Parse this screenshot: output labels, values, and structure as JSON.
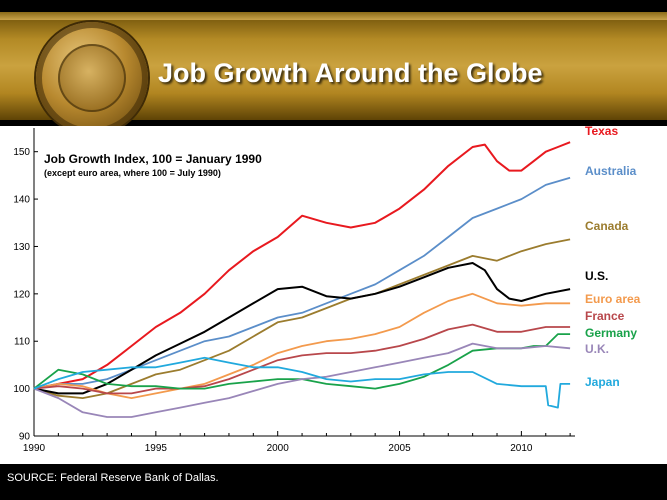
{
  "header": {
    "title": "Job Growth Around the Globe",
    "seal_icon": "federal-reserve-seal-icon"
  },
  "footer": {
    "source": "SOURCE: Federal Reserve Bank of Dallas."
  },
  "chart_data": {
    "type": "line",
    "title": "",
    "xlabel": "",
    "ylabel": "",
    "annotation": [
      "Job Growth Index, 100 = January 1990",
      "(except euro area,  where 100 = July 1990)"
    ],
    "xlim": [
      1990,
      2012.2
    ],
    "ylim": [
      90,
      155
    ],
    "xticks": [
      1990,
      1995,
      2000,
      2005,
      2010
    ],
    "yticks": [
      90,
      100,
      110,
      120,
      130,
      140,
      150
    ],
    "grid": false,
    "legend": "direct labels at right",
    "series": [
      {
        "name": "Texas",
        "color": "#e8191f",
        "x": [
          1990,
          1991,
          1992,
          1993,
          1994,
          1995,
          1996,
          1997,
          1998,
          1999,
          2000,
          2001,
          2002,
          2003,
          2004,
          2005,
          2006,
          2007,
          2008,
          2008.5,
          2009,
          2009.5,
          2010,
          2010.5,
          2011,
          2011.5,
          2012
        ],
        "y": [
          100,
          101,
          102,
          105,
          109,
          113,
          116,
          120,
          125,
          129,
          132,
          136.5,
          135,
          134,
          135,
          138,
          142,
          147,
          151,
          151.5,
          148,
          146,
          146,
          148,
          150,
          151,
          152
        ]
      },
      {
        "name": "Australia",
        "color": "#5b8ec9",
        "x": [
          1990,
          1991,
          1992,
          1993,
          1994,
          1995,
          1996,
          1997,
          1998,
          1999,
          2000,
          2001,
          2002,
          2003,
          2004,
          2005,
          2006,
          2007,
          2008,
          2009,
          2010,
          2011,
          2012
        ],
        "y": [
          100,
          101,
          101,
          102,
          104,
          106,
          108,
          110,
          111,
          113,
          115,
          116,
          118,
          120,
          122,
          125,
          128,
          132,
          136,
          138,
          140,
          143,
          144.5
        ]
      },
      {
        "name": "Canada",
        "color": "#9b7c2e",
        "x": [
          1990,
          1991,
          1992,
          1993,
          1994,
          1995,
          1996,
          1997,
          1998,
          1999,
          2000,
          2001,
          2002,
          2003,
          2004,
          2005,
          2006,
          2007,
          2008,
          2009,
          2010,
          2011,
          2012
        ],
        "y": [
          100,
          98.5,
          98,
          99,
          101,
          103,
          104,
          106,
          108,
          111,
          114,
          115,
          117,
          119,
          120,
          122,
          124,
          126,
          128,
          127,
          129,
          130.5,
          131.5
        ]
      },
      {
        "name": "U.S.",
        "color": "#000000",
        "x": [
          1990,
          1991,
          1992,
          1993,
          1994,
          1995,
          1996,
          1997,
          1998,
          1999,
          2000,
          2001,
          2002,
          2003,
          2004,
          2005,
          2006,
          2007,
          2008,
          2008.5,
          2009,
          2009.5,
          2010,
          2011,
          2012
        ],
        "y": [
          100,
          99,
          99,
          101,
          104,
          107,
          109.5,
          112,
          115,
          118,
          121,
          121.5,
          119.5,
          119,
          120,
          121.5,
          123.5,
          125.5,
          126.5,
          125,
          121,
          119,
          118.5,
          120,
          121
        ]
      },
      {
        "name": "Euro area",
        "color": "#f39a4d",
        "x": [
          1990,
          1991,
          1992,
          1993,
          1994,
          1995,
          1996,
          1997,
          1998,
          1999,
          2000,
          2001,
          2002,
          2003,
          2004,
          2005,
          2006,
          2007,
          2008,
          2009,
          2010,
          2011,
          2012
        ],
        "y": [
          100,
          101,
          100.5,
          99,
          98,
          99,
          100,
          101,
          103,
          105,
          107.5,
          109,
          110,
          110.5,
          111.5,
          113,
          116,
          118.5,
          120,
          118,
          117.5,
          118,
          118
        ]
      },
      {
        "name": "France",
        "color": "#b8474b",
        "x": [
          1990,
          1991,
          1992,
          1993,
          1994,
          1995,
          1996,
          1997,
          1998,
          1999,
          2000,
          2001,
          2002,
          2003,
          2004,
          2005,
          2006,
          2007,
          2008,
          2009,
          2010,
          2011,
          2012
        ],
        "y": [
          100,
          100.5,
          100,
          99,
          99,
          100,
          100,
          100.5,
          102,
          104,
          106,
          107,
          107.5,
          107.5,
          108,
          109,
          110.5,
          112.5,
          113.5,
          112,
          112,
          113,
          113
        ]
      },
      {
        "name": "Germany",
        "color": "#19a24a",
        "x": [
          1990,
          1991,
          1992,
          1993,
          1994,
          1995,
          1996,
          1997,
          1998,
          1999,
          2000,
          2001,
          2002,
          2003,
          2004,
          2005,
          2006,
          2007,
          2008,
          2009,
          2010,
          2010.5,
          2011,
          2011.5,
          2012
        ],
        "y": [
          100,
          104,
          103,
          101,
          100.5,
          100.5,
          100,
          100,
          101,
          101.5,
          102,
          102,
          101,
          100.5,
          100,
          101,
          102.5,
          105,
          108,
          108.5,
          108.5,
          109,
          109,
          111.5,
          111.5
        ]
      },
      {
        "name": "U.K.",
        "color": "#9986b8",
        "x": [
          1990,
          1991,
          1992,
          1993,
          1994,
          1995,
          1996,
          1997,
          1998,
          1999,
          2000,
          2001,
          2002,
          2003,
          2004,
          2005,
          2006,
          2007,
          2008,
          2009,
          2010,
          2011,
          2012
        ],
        "y": [
          100,
          98,
          95,
          94,
          94,
          95,
          96,
          97,
          98,
          99.5,
          101,
          102,
          102.5,
          103.5,
          104.5,
          105.5,
          106.5,
          107.5,
          109.5,
          108.5,
          108.5,
          109,
          108.5
        ]
      },
      {
        "name": "Japan",
        "color": "#21a9dd",
        "x": [
          1990,
          1991,
          1992,
          1993,
          1994,
          1995,
          1996,
          1997,
          1998,
          1999,
          2000,
          2001,
          2002,
          2003,
          2004,
          2005,
          2006,
          2007,
          2008,
          2009,
          2010,
          2011,
          2011.1,
          2011.5,
          2011.6,
          2012
        ],
        "y": [
          100,
          102,
          103.5,
          104,
          104.5,
          104.5,
          105.5,
          106.5,
          105.5,
          104.5,
          104.5,
          103.5,
          102,
          101.5,
          102,
          102,
          103,
          103.5,
          103.5,
          101,
          100.5,
          100.5,
          96.5,
          96,
          101,
          101
        ]
      }
    ]
  }
}
